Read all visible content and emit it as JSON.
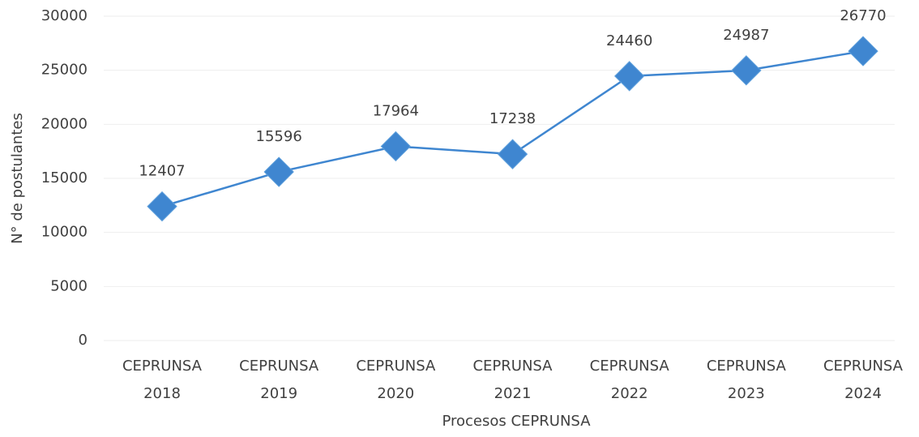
{
  "chart_data": {
    "type": "line",
    "x_label": "Procesos CEPRUNSA",
    "y_label": "N° de postulantes",
    "categories": [
      "CEPRUNSA 2018",
      "CEPRUNSA 2019",
      "CEPRUNSA 2020",
      "CEPRUNSA 2021",
      "CEPRUNSA 2022",
      "CEPRUNSA 2023",
      "CEPRUNSA 2024"
    ],
    "values": [
      12407,
      15596,
      17964,
      17238,
      24460,
      24987,
      26770
    ],
    "color": "#3f86d0",
    "ylim": [
      0,
      30000
    ],
    "yticks": [
      0,
      5000,
      10000,
      15000,
      20000,
      25000,
      30000
    ],
    "grid": true
  }
}
